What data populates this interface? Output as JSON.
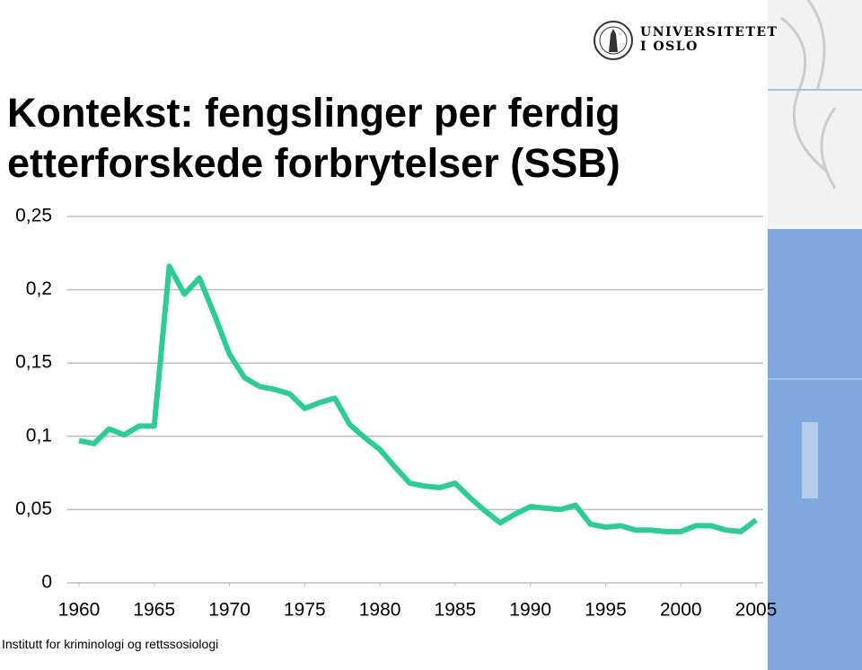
{
  "logo": {
    "line1": "UNIVERSITETET",
    "line2": "I OSLO"
  },
  "footer": "Institutt for kriminologi og rettssosiologi",
  "chart_data": {
    "type": "line",
    "title": "Kontekst: fengslinger per ferdig etterforskede forbrytelser (SSB)",
    "x": [
      1960,
      1961,
      1962,
      1963,
      1964,
      1965,
      1966,
      1967,
      1968,
      1969,
      1970,
      1971,
      1972,
      1973,
      1974,
      1975,
      1976,
      1977,
      1978,
      1979,
      1980,
      1981,
      1982,
      1983,
      1984,
      1985,
      1986,
      1987,
      1988,
      1989,
      1990,
      1991,
      1992,
      1993,
      1994,
      1995,
      1996,
      1997,
      1998,
      1999,
      2000,
      2001,
      2002,
      2003,
      2004,
      2005
    ],
    "series": [
      {
        "color": "#2ecc94",
        "values": [
          0.097,
          0.095,
          0.105,
          0.101,
          0.107,
          0.107,
          0.216,
          0.197,
          0.208,
          0.183,
          0.156,
          0.14,
          0.134,
          0.132,
          0.129,
          0.119,
          0.123,
          0.126,
          0.108,
          0.099,
          0.091,
          0.079,
          0.068,
          0.066,
          0.065,
          0.068,
          0.058,
          0.049,
          0.041,
          0.047,
          0.052,
          0.051,
          0.05,
          0.053,
          0.04,
          0.038,
          0.039,
          0.036,
          0.036,
          0.035,
          0.035,
          0.039,
          0.039,
          0.036,
          0.035,
          0.043
        ]
      }
    ],
    "xlim": [
      1960,
      2005
    ],
    "xticks": [
      1960,
      1965,
      1970,
      1975,
      1980,
      1985,
      1990,
      1995,
      2000,
      2005
    ],
    "ylim": [
      0,
      0.25
    ],
    "yticks": [
      0,
      {
        "value": 0.05,
        "label": "0,05"
      },
      {
        "value": 0.1,
        "label": "0,1"
      },
      {
        "value": 0.15,
        "label": "0,15"
      },
      {
        "value": 0.2,
        "label": "0,2"
      },
      {
        "value": 0.25,
        "label": "0,25"
      }
    ],
    "grid": true
  }
}
